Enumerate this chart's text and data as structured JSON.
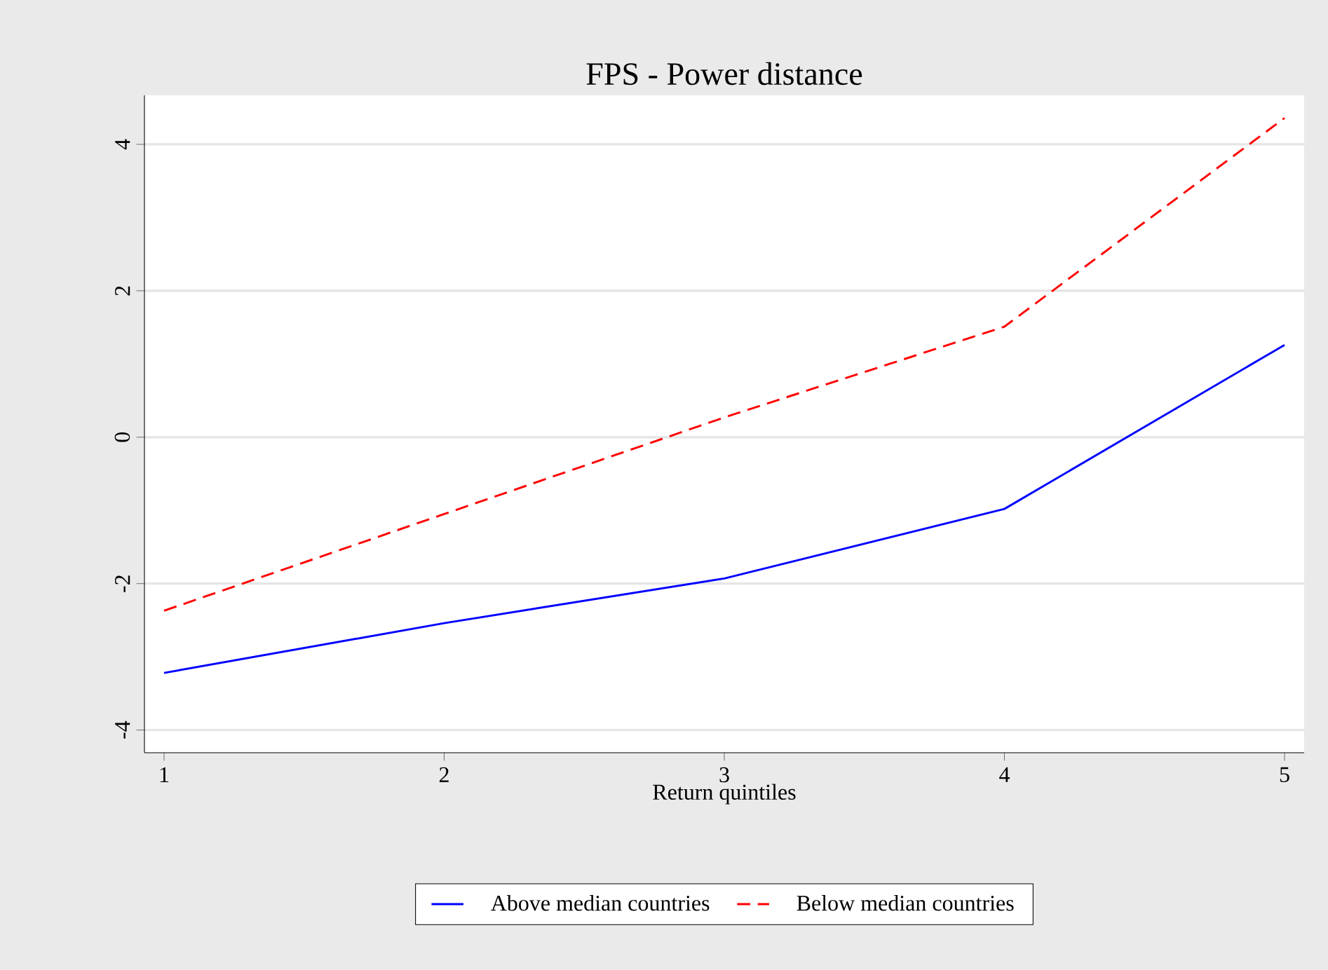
{
  "chart_data": {
    "type": "line",
    "title": "FPS - Power distance",
    "xlabel": "Return quintiles",
    "x": [
      1,
      2,
      3,
      4,
      5
    ],
    "series": [
      {
        "name": "Above median countries",
        "color": "#0000ff",
        "line_style": "solid",
        "values": [
          -3.22,
          -2.54,
          -1.93,
          -0.98,
          1.26
        ]
      },
      {
        "name": "Below median countries",
        "color": "#ff0000",
        "line_style": "dashed",
        "values": [
          -2.37,
          -1.05,
          0.27,
          1.51,
          4.36
        ]
      }
    ],
    "xlim": [
      0.93,
      5.07
    ],
    "ylim": [
      -4.31,
      4.67
    ],
    "xticks": [
      1,
      2,
      3,
      4,
      5
    ],
    "yticks": [
      -4,
      -2,
      0,
      2,
      4
    ],
    "grid": "y",
    "legend": "bottom",
    "marker": "none"
  }
}
